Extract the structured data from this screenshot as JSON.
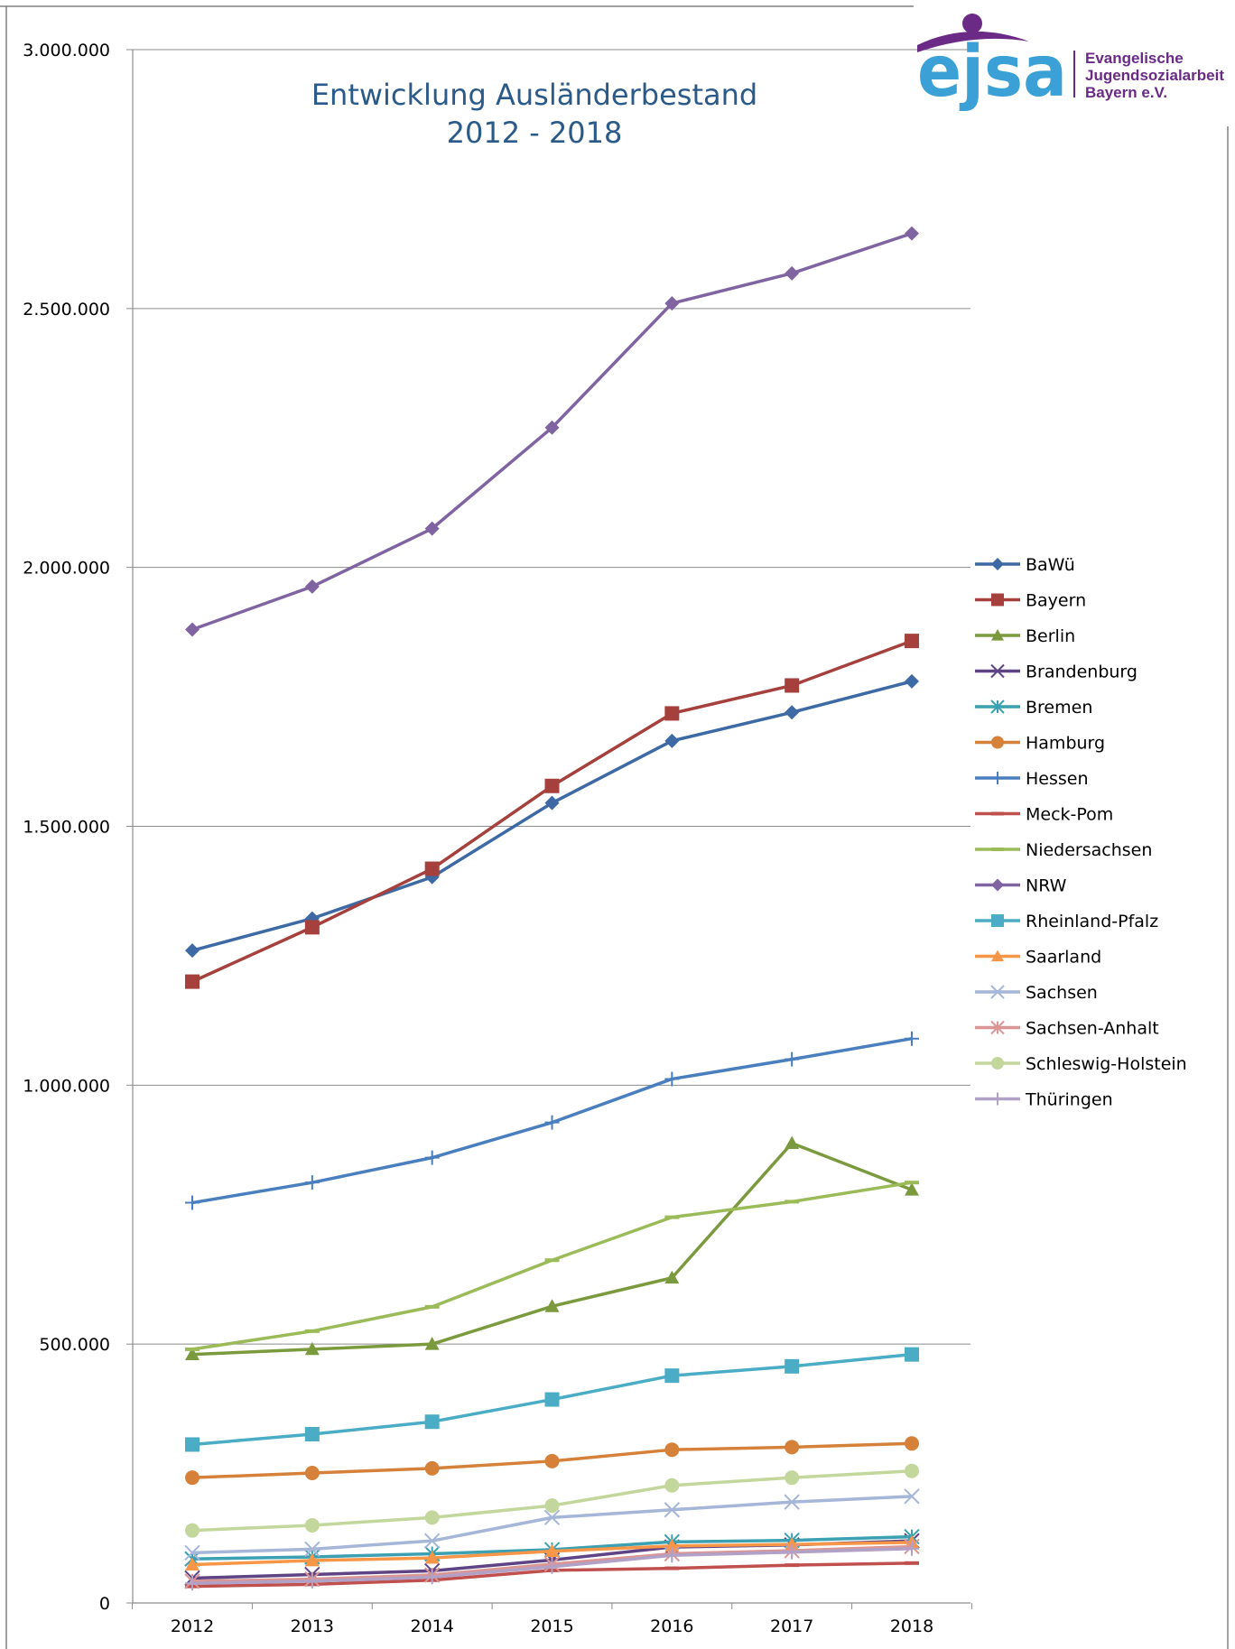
{
  "logo": {
    "word": "ejsa",
    "lines": [
      "Evangelische",
      "Jugendsozialarbeit",
      "Bayern e.V."
    ],
    "colors": {
      "blue": "#3aa0d5",
      "purple": "#6a2a86"
    }
  },
  "chart_data": {
    "type": "line",
    "title": [
      "Entwicklung Ausländerbestand",
      "2012 - 2018"
    ],
    "xlabel": "",
    "ylabel": "",
    "categories": [
      "2012",
      "2013",
      "2014",
      "2015",
      "2016",
      "2017",
      "2018"
    ],
    "ylim": [
      0,
      3000000
    ],
    "yticks": [
      0,
      500000,
      1000000,
      1500000,
      2000000,
      2500000,
      3000000
    ],
    "ytick_labels": [
      "0",
      "500.000",
      "1.000.000",
      "1.500.000",
      "2.000.000",
      "2.500.000",
      "3.000.000"
    ],
    "grid": true,
    "legend": "right",
    "series": [
      {
        "name": "BaWü",
        "color": "#3d6aa5",
        "marker": "diamond",
        "values": [
          1260000,
          1322000,
          1402000,
          1545000,
          1665000,
          1720000,
          1780000
        ]
      },
      {
        "name": "Bayern",
        "color": "#a5403c",
        "marker": "square",
        "values": [
          1200000,
          1305000,
          1418000,
          1578000,
          1718000,
          1772000,
          1858000
        ]
      },
      {
        "name": "Berlin",
        "color": "#7b9a3e",
        "marker": "triangle",
        "values": [
          480000,
          490000,
          500000,
          573000,
          628000,
          888000,
          798000
        ]
      },
      {
        "name": "Brandenburg",
        "color": "#5f4485",
        "marker": "x",
        "values": [
          48000,
          55000,
          62000,
          83000,
          108000,
          112000,
          120000
        ]
      },
      {
        "name": "Bremen",
        "color": "#3aa0b2",
        "marker": "star",
        "values": [
          85000,
          89000,
          95000,
          103000,
          118000,
          121000,
          128000
        ]
      },
      {
        "name": "Hamburg",
        "color": "#d5813a",
        "marker": "circle",
        "values": [
          242000,
          251000,
          260000,
          274000,
          296000,
          301000,
          308000
        ]
      },
      {
        "name": "Hessen",
        "color": "#4a7fbf",
        "marker": "plus",
        "values": [
          773000,
          812000,
          860000,
          928000,
          1012000,
          1050000,
          1090000
        ]
      },
      {
        "name": "Meck-Pom",
        "color": "#c0504d",
        "marker": "dash",
        "values": [
          32000,
          36000,
          44000,
          63000,
          67000,
          73000,
          77000
        ]
      },
      {
        "name": "Niedersachsen",
        "color": "#9bbb59",
        "marker": "dash",
        "values": [
          490000,
          525000,
          572000,
          662000,
          745000,
          775000,
          812000
        ]
      },
      {
        "name": "NRW",
        "color": "#8064a2",
        "marker": "diamond",
        "values": [
          1880000,
          1963000,
          2075000,
          2270000,
          2510000,
          2568000,
          2645000
        ]
      },
      {
        "name": "Rheinland-Pfalz",
        "color": "#4bacc6",
        "marker": "square",
        "values": [
          306000,
          326000,
          350000,
          393000,
          439000,
          457000,
          480000
        ]
      },
      {
        "name": "Saarland",
        "color": "#f79646",
        "marker": "triangle",
        "values": [
          74000,
          82000,
          87000,
          100000,
          110000,
          113000,
          117000
        ]
      },
      {
        "name": "Sachsen",
        "color": "#a5b6d9",
        "marker": "x",
        "values": [
          97000,
          104000,
          120000,
          165000,
          180000,
          195000,
          206000
        ]
      },
      {
        "name": "Sachsen-Anhalt",
        "color": "#d99694",
        "marker": "star",
        "values": [
          42000,
          46000,
          54000,
          75000,
          95000,
          101000,
          109000
        ]
      },
      {
        "name": "Schleswig-Holstein",
        "color": "#c3d69b",
        "marker": "circle",
        "values": [
          140000,
          150000,
          165000,
          188000,
          227000,
          242000,
          255000
        ]
      },
      {
        "name": "Thüringen",
        "color": "#b2a1c7",
        "marker": "plus",
        "values": [
          38000,
          42000,
          50000,
          70000,
          92000,
          98000,
          105000
        ]
      }
    ]
  }
}
